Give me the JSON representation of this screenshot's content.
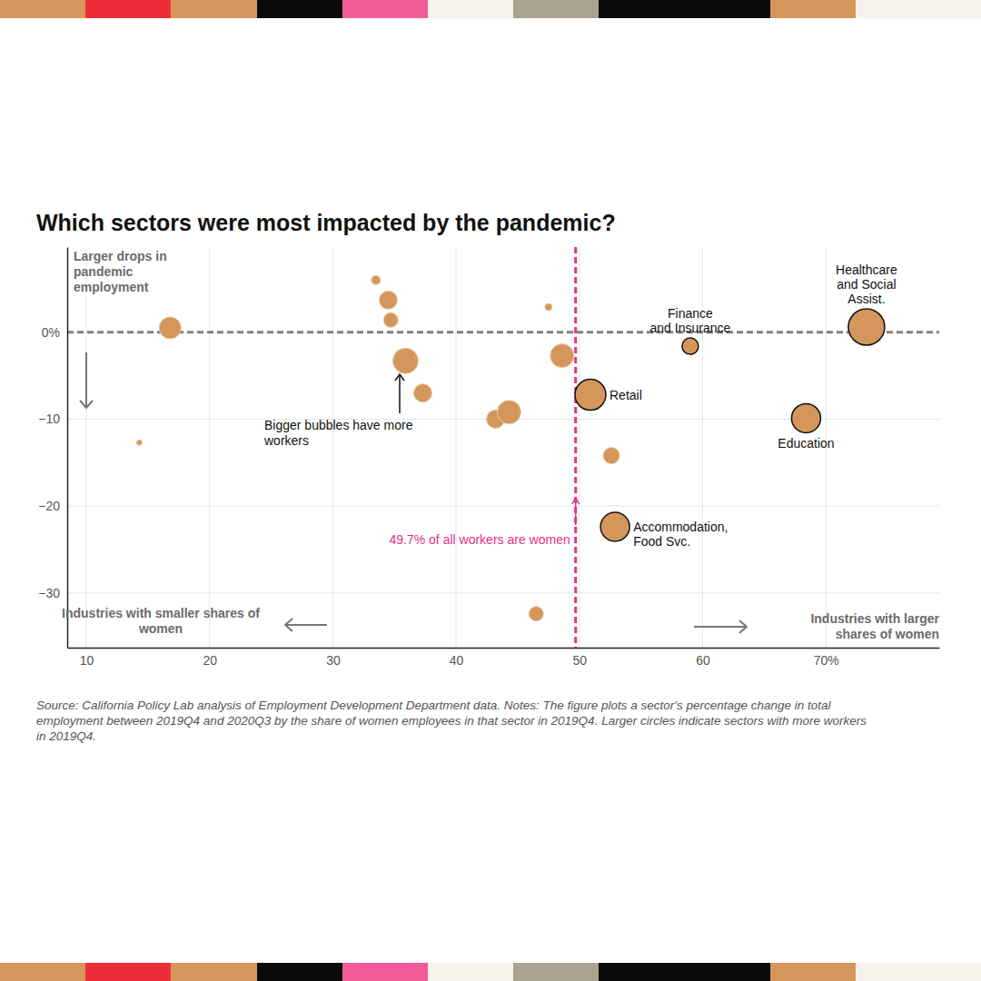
{
  "chart_data": {
    "type": "scatter",
    "title": "Which sectors were most impacted by the pandemic?",
    "x": [
      33.5,
      34.5,
      34.7,
      47.5,
      16.8,
      14.3,
      35.9,
      37.3,
      43.2,
      44.3,
      48.6,
      50.9,
      52.6,
      52.9,
      46.5,
      59.0,
      68.4,
      73.3
    ],
    "values": [
      6.0,
      3.7,
      1.4,
      2.9,
      0.5,
      -12.7,
      -3.3,
      -7.0,
      -10.0,
      -9.2,
      -2.7,
      -7.2,
      -14.2,
      -22.4,
      -32.4,
      -1.6,
      -9.9,
      0.6
    ],
    "size": [
      25,
      100,
      64,
      16,
      144,
      9,
      196,
      100,
      100,
      169,
      169,
      289,
      81,
      256,
      64,
      81,
      256,
      400
    ],
    "labels": [
      null,
      null,
      null,
      null,
      null,
      null,
      null,
      null,
      null,
      null,
      null,
      [
        "Retail"
      ],
      null,
      [
        "Accommodation,",
        "Food Svc."
      ],
      null,
      [
        "Finance",
        "and Insurance"
      ],
      [
        "Education"
      ],
      [
        "Healthcare",
        "and Social",
        "Assist."
      ]
    ],
    "color": "#d4965a",
    "xlim": [
      8.45,
      79.2
    ],
    "xticks": [
      10,
      20,
      30,
      40,
      50,
      60,
      {
        "value": 70,
        "label": "70%"
      }
    ],
    "ylim": [
      -36.3,
      9.8
    ],
    "yticks": [
      {
        "value": 0,
        "label": "0%"
      },
      {
        "value": -10,
        "label": "−10"
      },
      {
        "value": -20,
        "label": "−20"
      },
      {
        "value": -30,
        "label": "−30"
      }
    ],
    "grid": true,
    "reference_lines": [
      {
        "axis": "y",
        "value": 0,
        "color": "#808080"
      },
      {
        "axis": "x",
        "value": 49.7,
        "color": "#e0338a",
        "label": "49.7% of all workers are women"
      }
    ],
    "annotations": [
      {
        "lines": [
          "Larger drops in",
          "pandemic",
          "employment"
        ]
      },
      {
        "lines": [
          "Industries with smaller shares of",
          "women"
        ]
      },
      {
        "lines": [
          "Industries with larger",
          "shares of women"
        ]
      },
      {
        "lines": [
          "Bigger bubbles have more",
          "workers"
        ]
      }
    ],
    "source": [
      "Source: California Policy Lab analysis of Employment Development Department data. Notes: The figure plots a sector's percentage change in total",
      "employment between 2019Q4 and 2020Q3 by the share of women employees in that sector in 2019Q4. Larger circles indicate sectors with more workers",
      "in 2019Q4."
    ]
  }
}
